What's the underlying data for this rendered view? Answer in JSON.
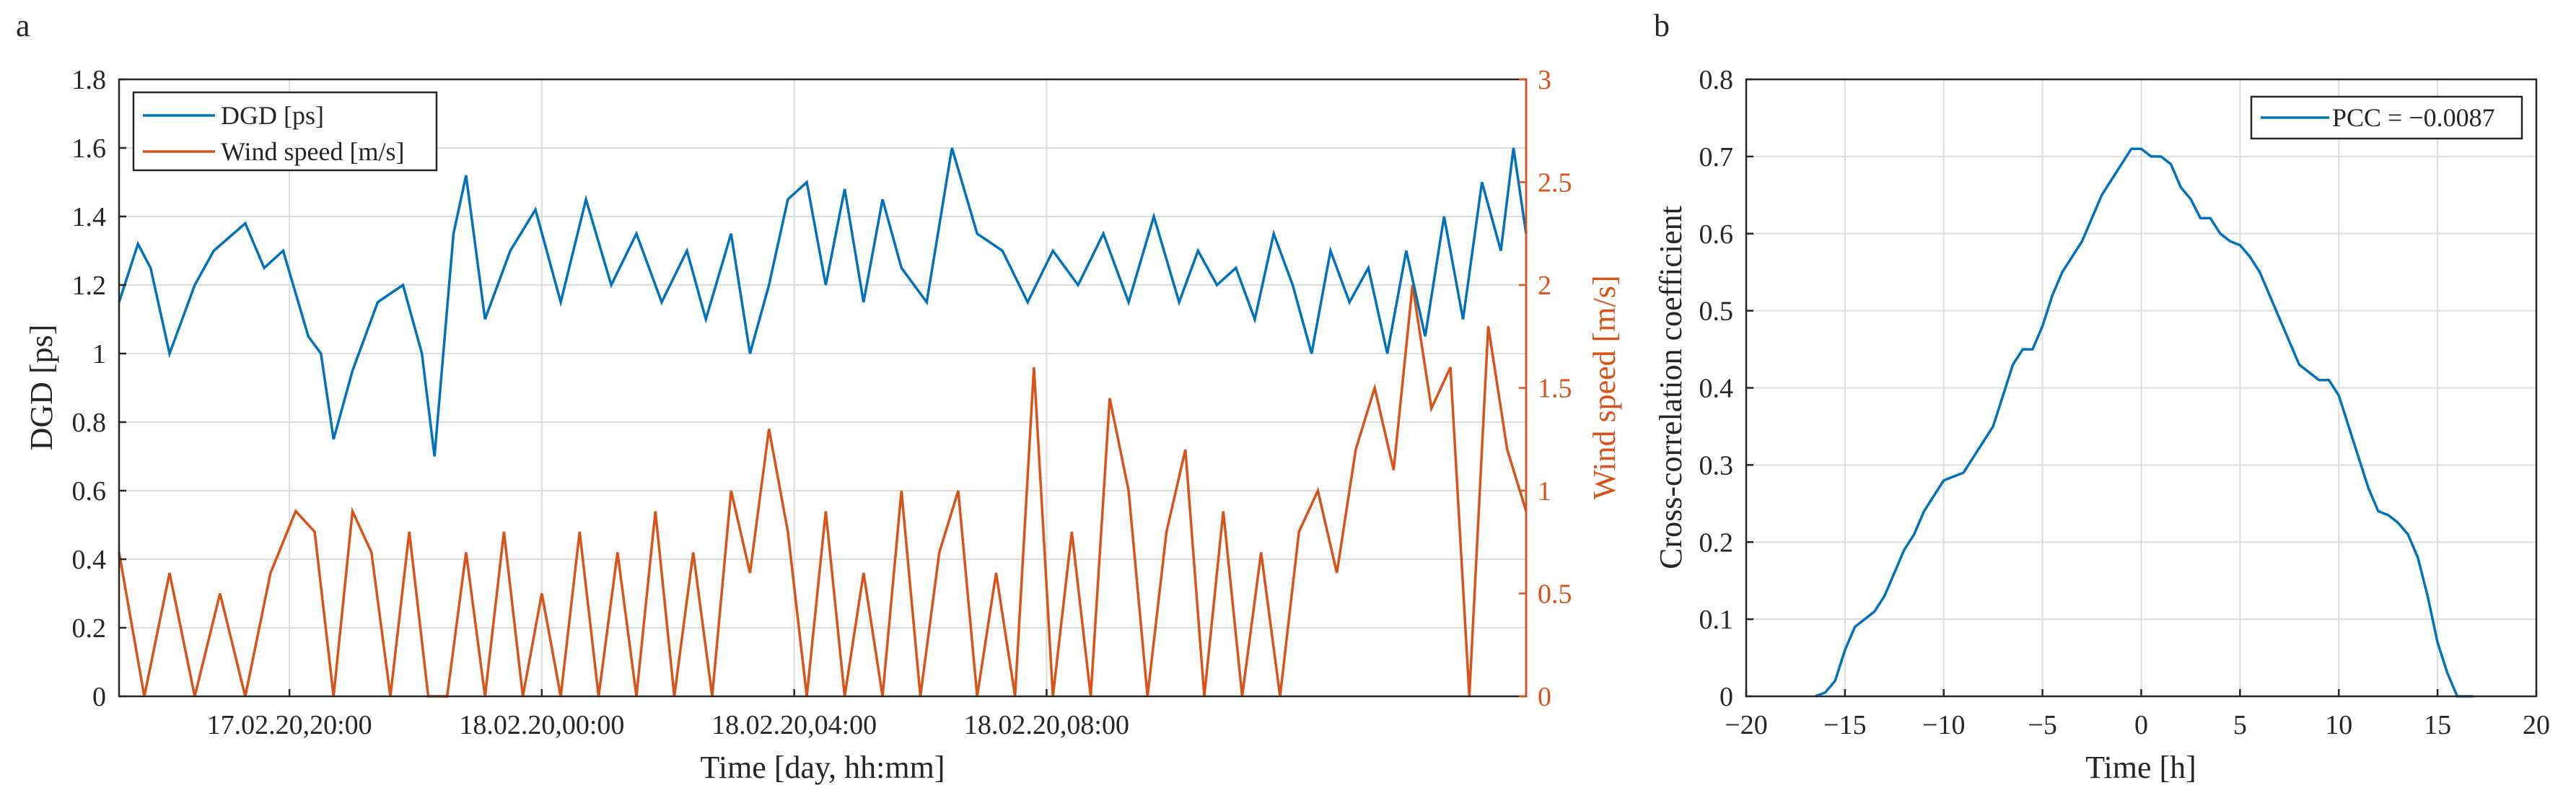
{
  "colors": {
    "dgd": "#0072BD",
    "wind": "#D95319",
    "axis": "#262626",
    "grid": "#dcdcdc"
  },
  "chart_data": [
    {
      "panel_label": "a",
      "type": "line",
      "xlabel": "Time [day, hh:mm]",
      "ylabel": "DGD [ps]",
      "y2label": "Wind speed [m/s]",
      "grid": true,
      "legend_position": "top-left",
      "x_range_hours": [
        0,
        22.3
      ],
      "x_ticks": [
        {
          "t": 2.7,
          "label": "17.02.20,20:00"
        },
        {
          "t": 6.7,
          "label": "18.02.20,00:00"
        },
        {
          "t": 10.7,
          "label": "18.02.20,04:00"
        },
        {
          "t": 14.7,
          "label": "18.02.20,08:00"
        }
      ],
      "ylim": [
        0,
        1.8
      ],
      "yticks": [
        "0",
        "0.2",
        "0.4",
        "0.6",
        "0.8",
        "1",
        "1.2",
        "1.4",
        "1.6",
        "1.8"
      ],
      "y2lim": [
        0,
        3
      ],
      "y2ticks": [
        "0",
        "0.5",
        "1",
        "1.5",
        "2",
        "2.5",
        "3"
      ],
      "series": [
        {
          "name": "DGD [ps]",
          "axis": "left",
          "t": [
            0,
            0.3,
            0.5,
            0.8,
            1.2,
            1.5,
            2.0,
            2.3,
            2.6,
            3.0,
            3.2,
            3.4,
            3.7,
            4.1,
            4.5,
            4.8,
            5.0,
            5.3,
            5.5,
            5.8,
            6.2,
            6.6,
            7.0,
            7.4,
            7.8,
            8.2,
            8.6,
            9.0,
            9.3,
            9.7,
            10.0,
            10.3,
            10.6,
            10.9,
            11.2,
            11.5,
            11.8,
            12.1,
            12.4,
            12.8,
            13.2,
            13.6,
            14.0,
            14.4,
            14.8,
            15.2,
            15.6,
            16.0,
            16.4,
            16.8,
            17.1,
            17.4,
            17.7,
            18.0,
            18.3,
            18.6,
            18.9,
            19.2,
            19.5,
            19.8,
            20.1,
            20.4,
            20.7,
            21.0,
            21.3,
            21.6,
            21.9,
            22.1,
            22.3
          ],
          "values": [
            1.15,
            1.32,
            1.25,
            1.0,
            1.2,
            1.3,
            1.38,
            1.25,
            1.3,
            1.05,
            1.0,
            0.75,
            0.95,
            1.15,
            1.2,
            1.0,
            0.7,
            1.35,
            1.52,
            1.1,
            1.3,
            1.42,
            1.15,
            1.45,
            1.2,
            1.35,
            1.15,
            1.3,
            1.1,
            1.35,
            1.0,
            1.2,
            1.45,
            1.5,
            1.2,
            1.48,
            1.15,
            1.45,
            1.25,
            1.15,
            1.6,
            1.35,
            1.3,
            1.15,
            1.3,
            1.2,
            1.35,
            1.15,
            1.4,
            1.15,
            1.3,
            1.2,
            1.25,
            1.1,
            1.35,
            1.2,
            1.0,
            1.3,
            1.15,
            1.25,
            1.0,
            1.3,
            1.05,
            1.4,
            1.1,
            1.5,
            1.3,
            1.6,
            1.35
          ]
        },
        {
          "name": "Wind speed [m/s]",
          "axis": "right",
          "t": [
            0,
            0.4,
            0.8,
            1.2,
            1.6,
            2.0,
            2.4,
            2.8,
            3.1,
            3.4,
            3.7,
            4.0,
            4.3,
            4.6,
            4.9,
            5.2,
            5.5,
            5.8,
            6.1,
            6.4,
            6.7,
            7.0,
            7.3,
            7.6,
            7.9,
            8.2,
            8.5,
            8.8,
            9.1,
            9.4,
            9.7,
            10.0,
            10.3,
            10.6,
            10.9,
            11.2,
            11.5,
            11.8,
            12.1,
            12.4,
            12.7,
            13.0,
            13.3,
            13.6,
            13.9,
            14.2,
            14.5,
            14.8,
            15.1,
            15.4,
            15.7,
            16.0,
            16.3,
            16.6,
            16.9,
            17.2,
            17.5,
            17.8,
            18.1,
            18.4,
            18.7,
            19.0,
            19.3,
            19.6,
            19.9,
            20.2,
            20.5,
            20.8,
            21.1,
            21.4,
            21.7,
            22.0,
            22.3
          ],
          "values": [
            0.7,
            0.0,
            0.6,
            0.0,
            0.5,
            0.0,
            0.6,
            0.9,
            0.8,
            0.0,
            0.9,
            0.7,
            0.0,
            0.8,
            0.0,
            0.0,
            0.7,
            0.0,
            0.8,
            0.0,
            0.5,
            0.0,
            0.8,
            0.0,
            0.7,
            0.0,
            0.9,
            0.0,
            0.7,
            0.0,
            1.0,
            0.6,
            1.3,
            0.8,
            0.0,
            0.9,
            0.0,
            0.6,
            0.0,
            1.0,
            0.0,
            0.7,
            1.0,
            0.0,
            0.6,
            0.0,
            1.6,
            0.0,
            0.8,
            0.0,
            1.45,
            1.0,
            0.0,
            0.8,
            1.2,
            0.0,
            0.9,
            0.0,
            0.7,
            0.0,
            0.8,
            1.0,
            0.6,
            1.2,
            1.5,
            1.1,
            2.0,
            1.4,
            1.6,
            0.0,
            1.8,
            1.2,
            0.9
          ]
        }
      ]
    },
    {
      "panel_label": "b",
      "type": "line",
      "xlabel": "Time [h]",
      "ylabel": "Cross-correlation coefficient",
      "grid": true,
      "legend_position": "top-right",
      "xlim": [
        -20,
        20
      ],
      "xticks": [
        "−20",
        "−15",
        "−10",
        "−5",
        "0",
        "5",
        "10",
        "15",
        "20"
      ],
      "ylim": [
        0,
        0.8
      ],
      "yticks": [
        "0",
        "0.1",
        "0.2",
        "0.3",
        "0.4",
        "0.5",
        "0.6",
        "0.7",
        "0.8"
      ],
      "series": [
        {
          "name": "PCC = −0.0087",
          "x": [
            -16.5,
            -16.0,
            -15.5,
            -15.0,
            -14.5,
            -14.0,
            -13.5,
            -13.0,
            -12.5,
            -12.0,
            -11.5,
            -11.0,
            -10.5,
            -10.0,
            -9.5,
            -9.0,
            -8.5,
            -8.0,
            -7.5,
            -7.0,
            -6.5,
            -6.0,
            -5.5,
            -5.0,
            -4.5,
            -4.0,
            -3.5,
            -3.0,
            -2.5,
            -2.0,
            -1.5,
            -1.0,
            -0.5,
            0.0,
            0.5,
            1.0,
            1.5,
            2.0,
            2.5,
            3.0,
            3.5,
            4.0,
            4.5,
            5.0,
            5.5,
            6.0,
            6.5,
            7.0,
            7.5,
            8.0,
            8.5,
            9.0,
            9.5,
            10.0,
            10.5,
            11.0,
            11.5,
            12.0,
            12.5,
            13.0,
            13.5,
            14.0,
            14.5,
            15.0,
            15.5,
            16.0,
            16.5,
            16.8
          ],
          "values": [
            0.0,
            0.005,
            0.02,
            0.06,
            0.09,
            0.1,
            0.11,
            0.13,
            0.16,
            0.19,
            0.21,
            0.24,
            0.26,
            0.28,
            0.285,
            0.29,
            0.31,
            0.33,
            0.35,
            0.39,
            0.43,
            0.45,
            0.45,
            0.48,
            0.52,
            0.55,
            0.57,
            0.59,
            0.62,
            0.65,
            0.67,
            0.69,
            0.71,
            0.71,
            0.7,
            0.7,
            0.69,
            0.66,
            0.645,
            0.62,
            0.62,
            0.6,
            0.59,
            0.585,
            0.57,
            0.55,
            0.52,
            0.49,
            0.46,
            0.43,
            0.42,
            0.41,
            0.41,
            0.39,
            0.35,
            0.31,
            0.27,
            0.24,
            0.235,
            0.225,
            0.21,
            0.18,
            0.13,
            0.07,
            0.03,
            0.0,
            0.0,
            0.0
          ]
        }
      ]
    }
  ]
}
